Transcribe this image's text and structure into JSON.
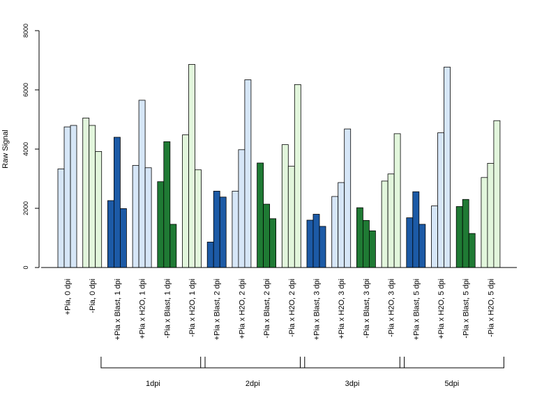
{
  "chart_data": {
    "type": "bar",
    "title": "",
    "xlabel": "",
    "ylabel": "Raw Signal",
    "ylim": [
      0,
      8000
    ],
    "yticks": [
      0,
      2000,
      4000,
      6000,
      8000
    ],
    "grid": false,
    "legend": "none",
    "categories": [
      "+Pia, 0 dpi",
      "-Pia, 0 dpi",
      "+Pia x Blast, 1 dpi",
      "+Pia x H2O, 1 dpi",
      "-Pia x Blast, 1 dpi",
      "-Pia x H2O, 1 dpi",
      "+Pia x Blast, 2 dpi",
      "+Pia x H2O, 2 dpi",
      "-Pia x Blast, 2 dpi",
      "-Pia x H2O, 2 dpi",
      "+Pia x Blast, 3 dpi",
      "+Pia x H2O, 3 dpi",
      "-Pia x Blast, 3 dpi",
      "-Pia x H2O, 3 dpi",
      "+Pia x Blast, 5 dpi",
      "+Pia x H2O, 5 dpi",
      "-Pia x Blast, 5 dpi",
      "-Pia x H2O, 5 dpi"
    ],
    "groups": [
      {
        "color": "#d6e6f7",
        "values": [
          3330,
          4750,
          4800
        ]
      },
      {
        "color": "#e2f6dc",
        "values": [
          5050,
          4800,
          3920
        ]
      },
      {
        "color": "#1c5aa6",
        "values": [
          2260,
          4400,
          1990
        ]
      },
      {
        "color": "#d6e6f7",
        "values": [
          3450,
          5650,
          3370
        ]
      },
      {
        "color": "#1f7a34",
        "values": [
          2900,
          4250,
          1460
        ]
      },
      {
        "color": "#e2f6dc",
        "values": [
          4480,
          6860,
          3300
        ]
      },
      {
        "color": "#1c5aa6",
        "values": [
          860,
          2580,
          2380
        ]
      },
      {
        "color": "#d6e6f7",
        "values": [
          2580,
          3980,
          6340
        ]
      },
      {
        "color": "#1f7a34",
        "values": [
          3530,
          2140,
          1650
        ]
      },
      {
        "color": "#e2f6dc",
        "values": [
          4150,
          3420,
          6180
        ]
      },
      {
        "color": "#1c5aa6",
        "values": [
          1600,
          1800,
          1390
        ]
      },
      {
        "color": "#d6e6f7",
        "values": [
          2400,
          2870,
          4680
        ]
      },
      {
        "color": "#1f7a34",
        "values": [
          2020,
          1590,
          1240
        ]
      },
      {
        "color": "#e2f6dc",
        "values": [
          2920,
          3160,
          4520
        ]
      },
      {
        "color": "#1c5aa6",
        "values": [
          1680,
          2560,
          1460
        ]
      },
      {
        "color": "#d6e6f7",
        "values": [
          2080,
          4550,
          6770
        ]
      },
      {
        "color": "#1f7a34",
        "values": [
          2060,
          2300,
          1150
        ]
      },
      {
        "color": "#e2f6dc",
        "values": [
          3040,
          3520,
          4960
        ]
      }
    ],
    "brackets": [
      {
        "label": "1dpi",
        "from": 2,
        "to": 5
      },
      {
        "label": "2dpi",
        "from": 6,
        "to": 9
      },
      {
        "label": "3dpi",
        "from": 10,
        "to": 13
      },
      {
        "label": "5dpi",
        "from": 14,
        "to": 17
      }
    ]
  }
}
